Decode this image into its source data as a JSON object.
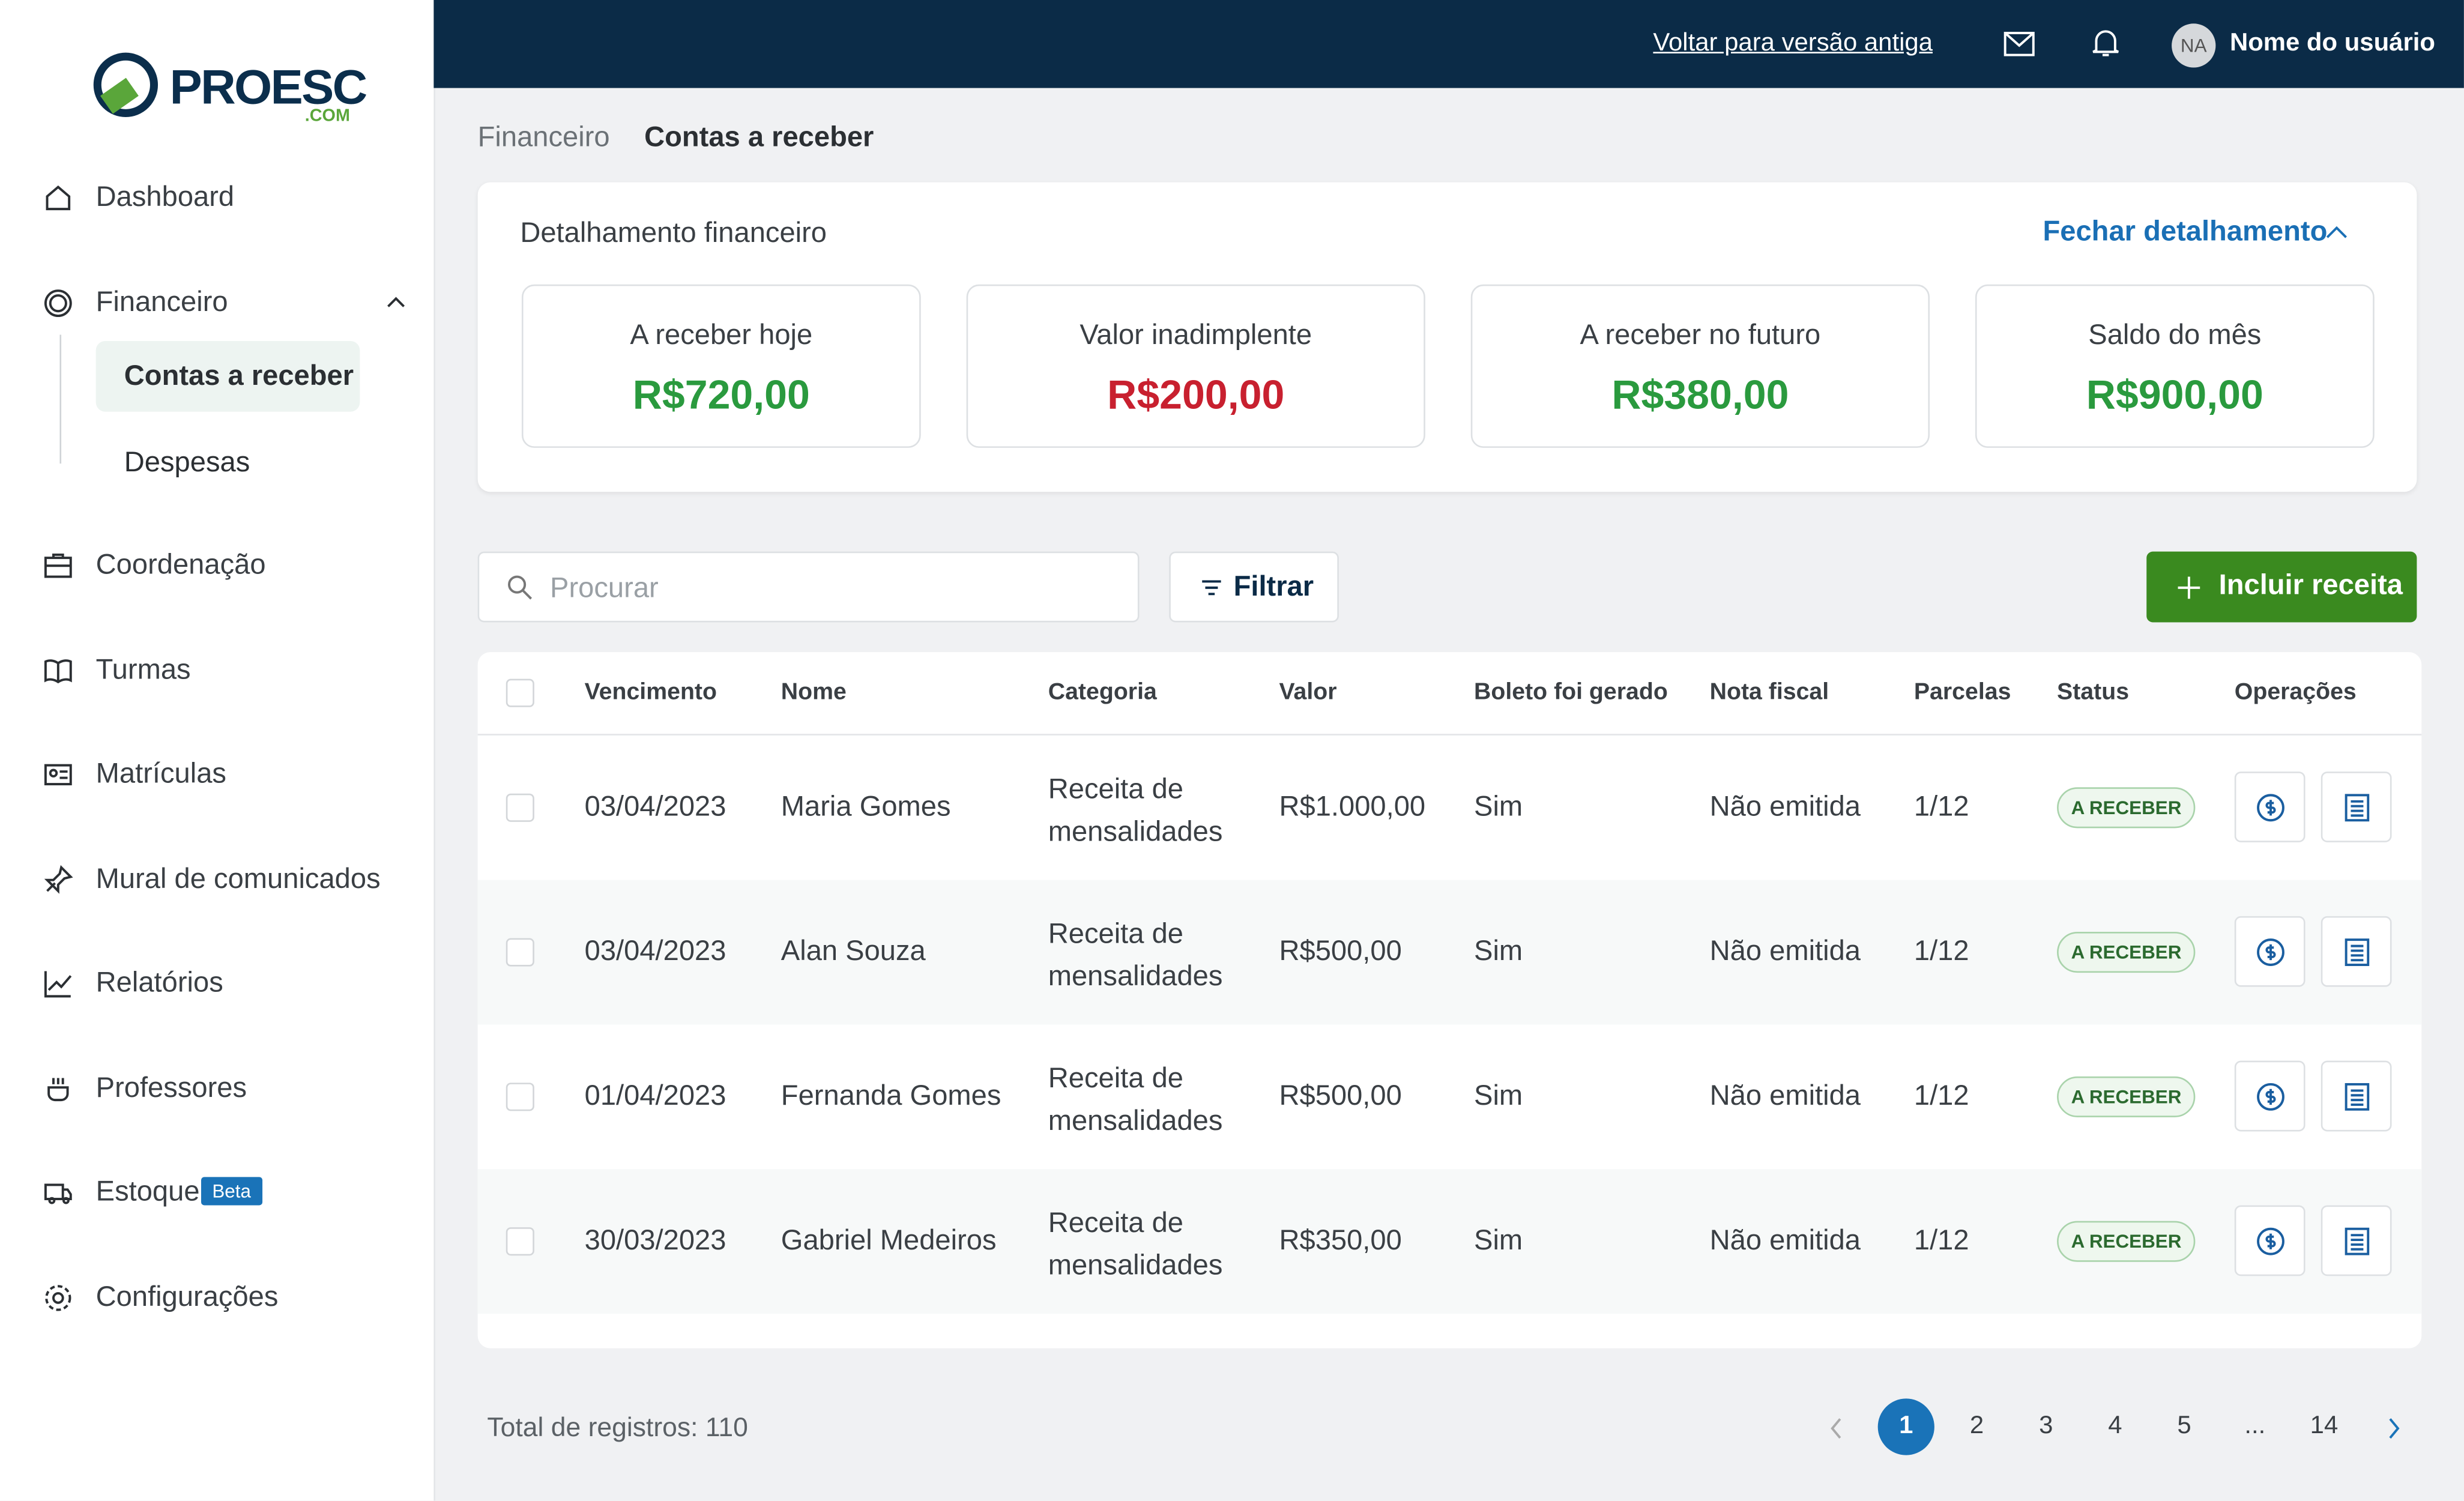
{
  "header": {
    "logo": "PROESC",
    "logo_suffix": ".COM",
    "old_version_link": "Voltar para versão antiga",
    "user_initials": "NA",
    "user_name": "Nome do usuário"
  },
  "sidebar": {
    "items": [
      {
        "label": "Dashboard"
      },
      {
        "label": "Financeiro",
        "children": [
          "Contas a receber",
          "Despesas"
        ]
      },
      {
        "label": "Coordenação"
      },
      {
        "label": "Turmas"
      },
      {
        "label": "Matrículas"
      },
      {
        "label": "Mural de comunicados"
      },
      {
        "label": "Relatórios"
      },
      {
        "label": "Professores"
      },
      {
        "label": "Estoque",
        "badge": "Beta"
      },
      {
        "label": "Configurações"
      }
    ]
  },
  "breadcrumb": [
    "Financeiro",
    "Contas a receber"
  ],
  "summary": {
    "title": "Detalhamento financeiro",
    "toggle": "Fechar detalhamento",
    "cards": [
      {
        "label": "A receber hoje",
        "value": "R$720,00"
      },
      {
        "label": "Valor inadimplente",
        "value": "R$200,00"
      },
      {
        "label": "A receber no futuro",
        "value": "R$380,00"
      },
      {
        "label": "Saldo do mês",
        "value": "R$900,00"
      }
    ]
  },
  "toolbar": {
    "search_placeholder": "Procurar",
    "filter": "Filtrar",
    "add": "Incluir receita"
  },
  "table": {
    "columns": [
      "Vencimento",
      "Nome",
      "Categoria",
      "Valor",
      "Boleto foi gerado",
      "Nota fiscal",
      "Parcelas",
      "Status",
      "Operações"
    ],
    "rows": [
      [
        "03/04/2023",
        "Maria Gomes",
        "Receita de mensalidades",
        "R$1.000,00",
        "Sim",
        "Não emitida",
        "1/12",
        "A RECEBER"
      ],
      [
        "03/04/2023",
        "Alan Souza",
        "Receita de mensalidades",
        "R$500,00",
        "Sim",
        "Não emitida",
        "1/12",
        "A RECEBER"
      ],
      [
        "01/04/2023",
        "Fernanda Gomes",
        "Receita de mensalidades",
        "R$500,00",
        "Sim",
        "Não emitida",
        "1/12",
        "A RECEBER"
      ],
      [
        "30/03/2023",
        "Gabriel Medeiros",
        "Receita de mensalidades",
        "R$350,00",
        "Sim",
        "Não emitida",
        "1/12",
        "A RECEBER"
      ]
    ]
  },
  "pagination": {
    "total": "Total de registros: 110",
    "pages": [
      "1",
      "2",
      "3",
      "4",
      "5",
      "...",
      "14"
    ]
  }
}
